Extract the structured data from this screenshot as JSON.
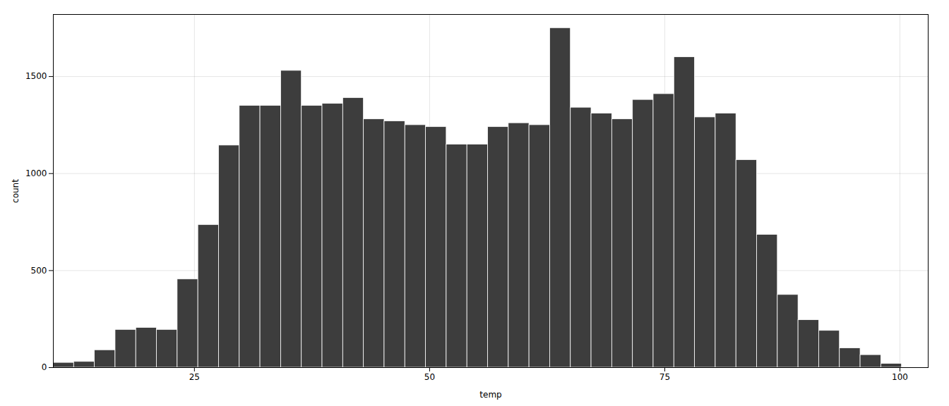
{
  "chart_data": {
    "type": "histogram",
    "bins": [
      10,
      12.2,
      14.4,
      16.6,
      18.8,
      21,
      23.2,
      25.4,
      27.6,
      29.8,
      32,
      34.2,
      36.4,
      38.6,
      40.8,
      43,
      45.2,
      47.4,
      49.6,
      51.8,
      54,
      56.2,
      58.4,
      60.6,
      62.8,
      65,
      67.2,
      69.4,
      71.6,
      73.8,
      76,
      78.2,
      80.4,
      82.6,
      84.8,
      87,
      89.2,
      91.4,
      93.6,
      95.8,
      98,
      100.2
    ],
    "values": [
      25,
      30,
      90,
      195,
      205,
      195,
      455,
      735,
      1145,
      1350,
      1350,
      1530,
      1350,
      1360,
      1390,
      1280,
      1270,
      1250,
      1240,
      1150,
      1150,
      1240,
      1260,
      1250,
      1750,
      1340,
      1310,
      1280,
      1380,
      1410,
      1600,
      1290,
      1310,
      1070,
      685,
      375,
      245,
      190,
      100,
      65,
      20
    ],
    "color": "#3d3d3d",
    "xlabel": "temp",
    "ylabel": "count",
    "xlim": [
      10,
      103
    ],
    "xticks": [
      25,
      50,
      75,
      100
    ],
    "ylim": [
      0,
      1820
    ],
    "yticks": [
      0,
      500,
      1000,
      1500
    ],
    "grid": true
  }
}
